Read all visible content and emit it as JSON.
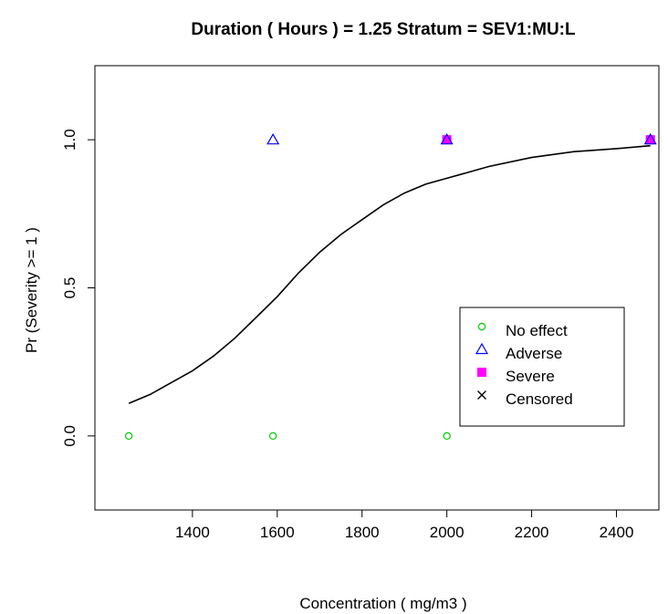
{
  "chart_data": {
    "type": "scatter",
    "title": "Duration ( Hours ) =  1.25    Stratum =  SEV1:MU:L",
    "xlabel": "Concentration ( mg/m3 )",
    "ylabel": "Pr (Severity >= 1 )",
    "xlim": [
      1170,
      2500
    ],
    "ylim": [
      -0.25,
      1.25
    ],
    "x_ticks": [
      "1400",
      "1600",
      "1800",
      "2000",
      "2200",
      "2400"
    ],
    "y_ticks": [
      "0.0",
      "0.5",
      "1.0"
    ],
    "legend": {
      "placement": "right",
      "entries": [
        "No effect",
        "Adverse",
        "Severe",
        "Censored"
      ]
    },
    "series": [
      {
        "name": "No effect",
        "marker": "circle",
        "color": "#00cc00",
        "points": [
          {
            "x": 1250,
            "y": 0
          },
          {
            "x": 1590,
            "y": 0
          },
          {
            "x": 2000,
            "y": 0
          }
        ]
      },
      {
        "name": "Adverse",
        "marker": "triangle",
        "color": "#0000ff",
        "points": [
          {
            "x": 1590,
            "y": 1
          },
          {
            "x": 2000,
            "y": 1
          },
          {
            "x": 2480,
            "y": 1
          }
        ]
      },
      {
        "name": "Severe",
        "marker": "square",
        "color": "#ff00ff",
        "points": [
          {
            "x": 2000,
            "y": 1
          },
          {
            "x": 2480,
            "y": 1
          }
        ]
      },
      {
        "name": "Censored",
        "marker": "cross",
        "color": "#000000",
        "points": []
      }
    ],
    "fit_curve": {
      "color": "#000000",
      "points": [
        {
          "x": 1250,
          "y": 0.11
        },
        {
          "x": 1300,
          "y": 0.14
        },
        {
          "x": 1350,
          "y": 0.18
        },
        {
          "x": 1400,
          "y": 0.22
        },
        {
          "x": 1450,
          "y": 0.27
        },
        {
          "x": 1500,
          "y": 0.33
        },
        {
          "x": 1550,
          "y": 0.4
        },
        {
          "x": 1600,
          "y": 0.47
        },
        {
          "x": 1650,
          "y": 0.55
        },
        {
          "x": 1700,
          "y": 0.62
        },
        {
          "x": 1750,
          "y": 0.68
        },
        {
          "x": 1800,
          "y": 0.73
        },
        {
          "x": 1850,
          "y": 0.78
        },
        {
          "x": 1900,
          "y": 0.82
        },
        {
          "x": 1950,
          "y": 0.85
        },
        {
          "x": 2000,
          "y": 0.87
        },
        {
          "x": 2100,
          "y": 0.91
        },
        {
          "x": 2200,
          "y": 0.94
        },
        {
          "x": 2300,
          "y": 0.96
        },
        {
          "x": 2400,
          "y": 0.97
        },
        {
          "x": 2480,
          "y": 0.98
        }
      ]
    }
  }
}
